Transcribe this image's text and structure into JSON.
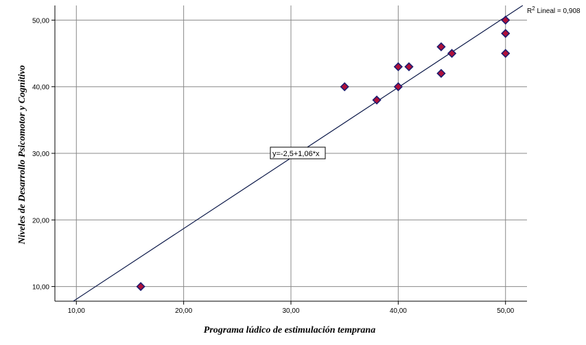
{
  "chart_data": {
    "type": "scatter",
    "xlabel": "Programa lúdico de estimulación temprana",
    "ylabel": "Niveles de Desarrollo Psicomotor y Cognitivo",
    "xlim": [
      8,
      52
    ],
    "ylim": [
      7.8,
      52.2
    ],
    "x_ticks": [
      10,
      20,
      30,
      40,
      50
    ],
    "y_ticks": [
      10,
      20,
      30,
      40,
      50
    ],
    "x_tick_labels": [
      "10,00",
      "20,00",
      "30,00",
      "40,00",
      "50,00"
    ],
    "y_tick_labels": [
      "10,00",
      "20,00",
      "30,00",
      "40,00",
      "50,00"
    ],
    "grid": true,
    "points": [
      {
        "x": 16,
        "y": 10
      },
      {
        "x": 35,
        "y": 40
      },
      {
        "x": 38,
        "y": 38
      },
      {
        "x": 40,
        "y": 40
      },
      {
        "x": 40,
        "y": 43
      },
      {
        "x": 41,
        "y": 43
      },
      {
        "x": 44,
        "y": 46
      },
      {
        "x": 44,
        "y": 42
      },
      {
        "x": 45,
        "y": 45
      },
      {
        "x": 50,
        "y": 50
      },
      {
        "x": 50,
        "y": 48
      },
      {
        "x": 50,
        "y": 45
      }
    ],
    "fit_line": {
      "intercept": -2.5,
      "slope": 1.06
    },
    "equation_label": "y=-2,5+1,06*x",
    "r2_prefix": "R",
    "r2_superscript": "2",
    "r2_text": " Lineal = 0,908",
    "colors": {
      "marker_fill": "#b0103a",
      "marker_stroke": "#1c1c6e",
      "line": "#0d1a4a",
      "grid": "#888888"
    }
  }
}
